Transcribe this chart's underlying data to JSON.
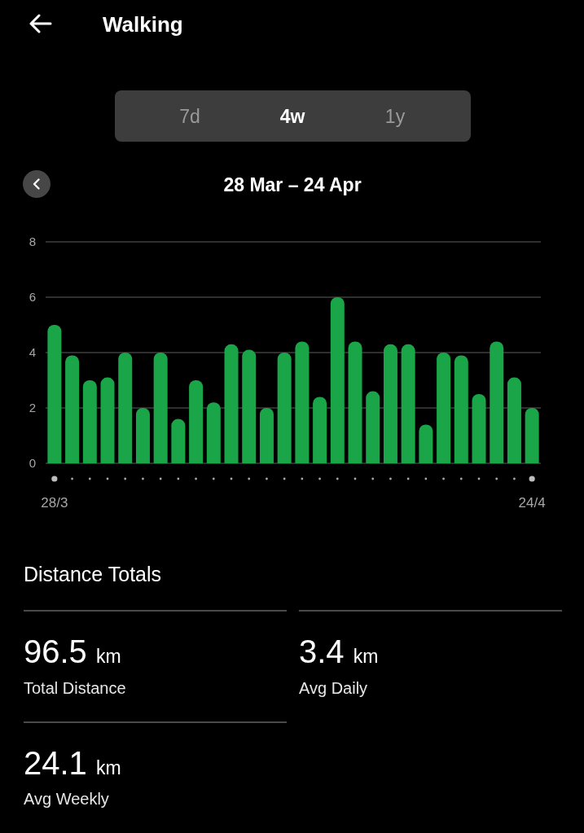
{
  "chart_data": {
    "type": "bar",
    "title": "Walking",
    "subtitle": "28 Mar – 24 Apr",
    "categories": [
      "28/3",
      null,
      null,
      null,
      null,
      null,
      null,
      null,
      null,
      null,
      null,
      null,
      null,
      null,
      null,
      null,
      null,
      null,
      null,
      null,
      null,
      null,
      null,
      null,
      null,
      null,
      null,
      "24/4"
    ],
    "values": [
      5.0,
      3.9,
      3.0,
      3.1,
      4.0,
      2.0,
      4.0,
      1.6,
      3.0,
      2.2,
      4.3,
      4.1,
      2.0,
      4.0,
      4.4,
      2.4,
      6.0,
      4.4,
      2.6,
      4.3,
      4.3,
      1.4,
      4.0,
      3.9,
      2.5,
      4.4,
      3.1,
      2.0
    ],
    "color": "#1aa548",
    "ylim": [
      0,
      8
    ],
    "yticks": [
      0,
      2,
      4,
      6,
      8
    ],
    "grid": "y",
    "annotations": [
      "7d",
      "4w",
      "1y",
      "Distance Totals",
      "96.5 km",
      "Total Distance",
      "3.4 km",
      "Avg Daily",
      "24.1 km",
      "Avg Weekly"
    ]
  }
}
